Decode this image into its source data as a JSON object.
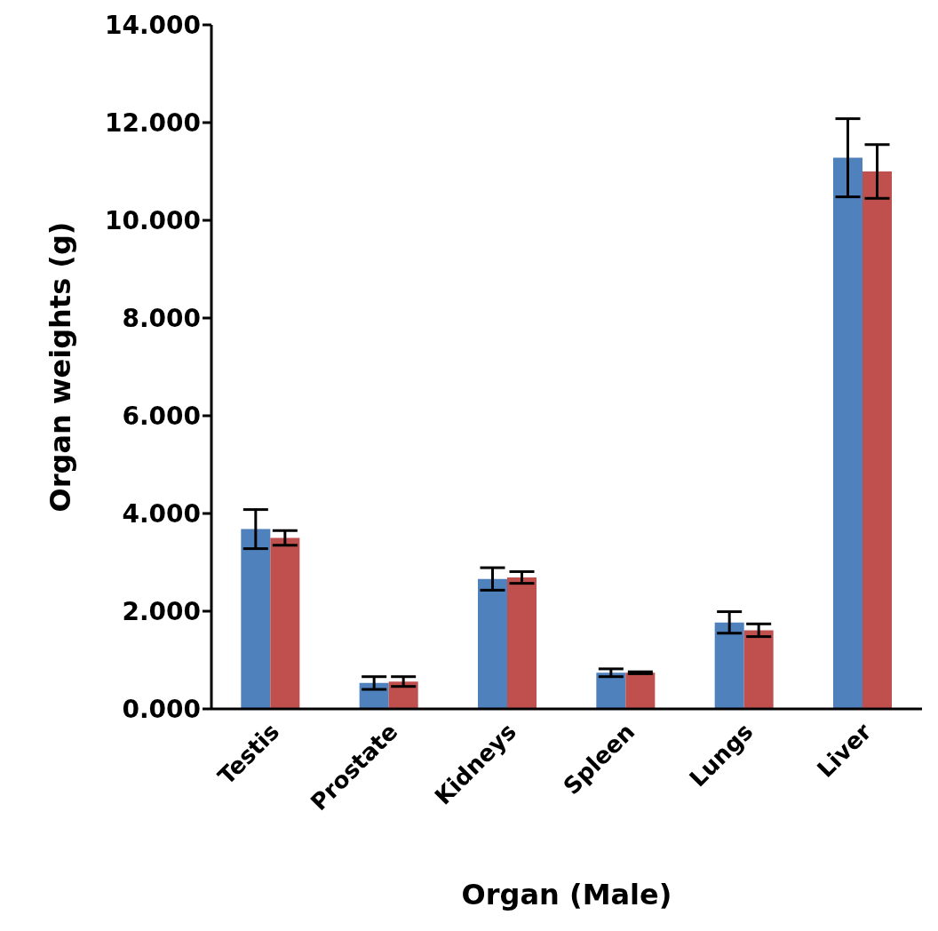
{
  "chart_data": {
    "type": "bar",
    "xlabel": "Organ (Male)",
    "ylabel": "Organ weights (g)",
    "categories": [
      "Testis",
      "Prostate",
      "Kidneys",
      "Spleen",
      "Lungs",
      "Liver"
    ],
    "series": [
      {
        "color": "#4f81bd",
        "values": [
          3.68,
          0.53,
          2.66,
          0.74,
          1.77,
          11.28
        ],
        "errors": [
          0.4,
          0.13,
          0.23,
          0.08,
          0.22,
          0.8
        ]
      },
      {
        "color": "#c0504d",
        "values": [
          3.5,
          0.56,
          2.69,
          0.74,
          1.61,
          11.0
        ],
        "errors": [
          0.15,
          0.1,
          0.12,
          0.02,
          0.13,
          0.55
        ]
      }
    ],
    "ylim": [
      0,
      14
    ],
    "yticks": [
      {
        "value": 0,
        "label": "0.000"
      },
      {
        "value": 2,
        "label": "2.000"
      },
      {
        "value": 4,
        "label": "4.000"
      },
      {
        "value": 6,
        "label": "6.000"
      },
      {
        "value": 8,
        "label": "8.000"
      },
      {
        "value": 10,
        "label": "10.000"
      },
      {
        "value": 12,
        "label": "12.000"
      },
      {
        "value": 14,
        "label": "14.000"
      }
    ],
    "grid": false,
    "legend": false
  }
}
